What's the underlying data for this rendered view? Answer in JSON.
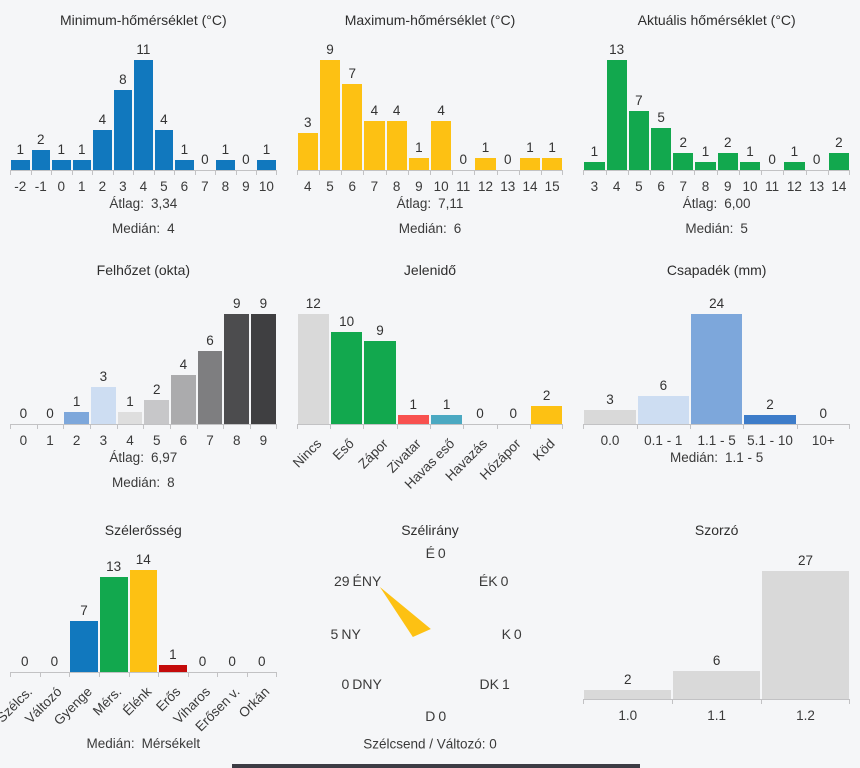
{
  "page": {
    "background": "#f5f6f8"
  },
  "colors": {
    "blue": "#1178be",
    "yellow": "#fdc113",
    "green": "#12a84e",
    "red": "#f8514f",
    "teal": "#4ba9c2",
    "dark_red": "#c40b0b",
    "gray": "#d9d9d9",
    "axis": "#c2c2c4"
  },
  "chart_data": [
    {
      "type": "bar",
      "title": "Minimum-hőmérséklet (°C)",
      "categories": [
        "-2",
        "-1",
        "0",
        "1",
        "2",
        "3",
        "4",
        "5",
        "6",
        "7",
        "8",
        "9",
        "10"
      ],
      "values": [
        1,
        2,
        1,
        1,
        4,
        8,
        11,
        4,
        1,
        0,
        1,
        0,
        1
      ],
      "bar_color": "#1178be",
      "ylim": [
        0,
        11
      ],
      "grid": false,
      "stats": [
        {
          "label": "Átlag:",
          "value": "3,34"
        },
        {
          "label": "Medián:",
          "value": "4"
        }
      ]
    },
    {
      "type": "bar",
      "title": "Maximum-hőmérséklet (°C)",
      "categories": [
        "4",
        "5",
        "6",
        "7",
        "8",
        "9",
        "10",
        "11",
        "12",
        "13",
        "14",
        "15"
      ],
      "values": [
        3,
        9,
        7,
        4,
        4,
        1,
        4,
        0,
        1,
        0,
        1,
        1
      ],
      "bar_color": "#fdc113",
      "ylim": [
        0,
        9
      ],
      "grid": false,
      "stats": [
        {
          "label": "Átlag:",
          "value": "7,11"
        },
        {
          "label": "Medián:",
          "value": "6"
        }
      ]
    },
    {
      "type": "bar",
      "title": "Aktuális hőmérséklet (°C)",
      "categories": [
        "3",
        "4",
        "5",
        "6",
        "7",
        "8",
        "9",
        "10",
        "11",
        "12",
        "13",
        "14"
      ],
      "values": [
        1,
        13,
        7,
        5,
        2,
        1,
        2,
        1,
        0,
        1,
        0,
        2
      ],
      "bar_color": "#12a84e",
      "ylim": [
        0,
        13
      ],
      "grid": false,
      "stats": [
        {
          "label": "Átlag:",
          "value": "6,00"
        },
        {
          "label": "Medián:",
          "value": "5"
        }
      ]
    },
    {
      "type": "bar",
      "title": "Felhőzet (okta)",
      "categories": [
        "0",
        "1",
        "2",
        "3",
        "4",
        "5",
        "6",
        "7",
        "8",
        "9"
      ],
      "values": [
        0,
        0,
        1,
        3,
        1,
        2,
        4,
        6,
        9,
        9
      ],
      "bar_colors": [
        "#d9d9d9",
        "#d9d9d9",
        "#7da7db",
        "#cdddf2",
        "#dedede",
        "#c7c7c9",
        "#ababad",
        "#7e7e80",
        "#4c4c4e",
        "#3f3f41"
      ],
      "ylim": [
        0,
        9
      ],
      "grid": false,
      "stats": [
        {
          "label": "Átlag:",
          "value": "6,97"
        },
        {
          "label": "Medián:",
          "value": "8"
        }
      ]
    },
    {
      "type": "bar",
      "title": "Jelenidő",
      "categories": [
        "Nincs",
        "Eső",
        "Zápor",
        "Zivatar",
        "Havas eső",
        "Havazás",
        "Hózápor",
        "Köd"
      ],
      "values": [
        12,
        10,
        9,
        1,
        1,
        0,
        0,
        2
      ],
      "bar_colors": [
        "#d9d9d9",
        "#12a84e",
        "#12a84e",
        "#f8514f",
        "#4ba9c2",
        "#d9d9d9",
        "#d9d9d9",
        "#fdc113"
      ],
      "rotate_labels": true,
      "ylim": [
        0,
        12
      ],
      "grid": false,
      "stats": []
    },
    {
      "type": "bar",
      "title": "Csapadék (mm)",
      "categories": [
        "0.0",
        "0.1 - 1",
        "1.1 - 5",
        "5.1 - 10",
        "10+"
      ],
      "values": [
        3,
        6,
        24,
        2,
        0
      ],
      "bar_colors": [
        "#d9d9d9",
        "#cdddf2",
        "#7da7db",
        "#3d7cc9",
        "#d9d9d9"
      ],
      "ylim": [
        0,
        24
      ],
      "grid": false,
      "stats": [
        {
          "label": "Medián:",
          "value": "1.1 - 5"
        }
      ]
    },
    {
      "type": "bar",
      "title": "Szélerősség",
      "categories": [
        "Szélcs.",
        "Változó",
        "Gyenge",
        "Mérs.",
        "Élénk",
        "Erős",
        "Viharos",
        "Erősen v.",
        "Orkán"
      ],
      "values": [
        0,
        0,
        7,
        13,
        14,
        1,
        0,
        0,
        0
      ],
      "bar_colors": [
        "#d9d9d9",
        "#d9d9d9",
        "#1178be",
        "#12a84e",
        "#fdc113",
        "#c40b0b",
        "#d9d9d9",
        "#d9d9d9",
        "#d9d9d9"
      ],
      "rotate_labels": true,
      "ylim": [
        0,
        14
      ],
      "grid": false,
      "stats": [
        {
          "label": "Medián:",
          "value": "Mérsékelt"
        }
      ]
    },
    {
      "type": "compass",
      "title": "Szélirány",
      "needle": {
        "direction": "ÉNY",
        "color": "#fdc113"
      },
      "directions": [
        {
          "dir": "É",
          "count": "0",
          "pos": "n"
        },
        {
          "dir": "ÉK",
          "count": "0",
          "pos": "ne"
        },
        {
          "dir": "K",
          "count": "0",
          "pos": "e"
        },
        {
          "dir": "DK",
          "count": "1",
          "pos": "se"
        },
        {
          "dir": "D",
          "count": "0",
          "pos": "s"
        },
        {
          "dir": "DNY",
          "count": "0",
          "pos": "sw"
        },
        {
          "dir": "NY",
          "count": "5",
          "pos": "w"
        },
        {
          "dir": "ÉNY",
          "count": "29",
          "pos": "nw"
        }
      ],
      "footer": "Szélcsend / Változó: 0"
    },
    {
      "type": "bar",
      "title": "Szorzó",
      "categories": [
        "1.0",
        "1.1",
        "1.2"
      ],
      "values": [
        2,
        6,
        27
      ],
      "bar_color": "#d9d9d9",
      "ylim": [
        0,
        27
      ],
      "grid": false,
      "stats": []
    }
  ]
}
